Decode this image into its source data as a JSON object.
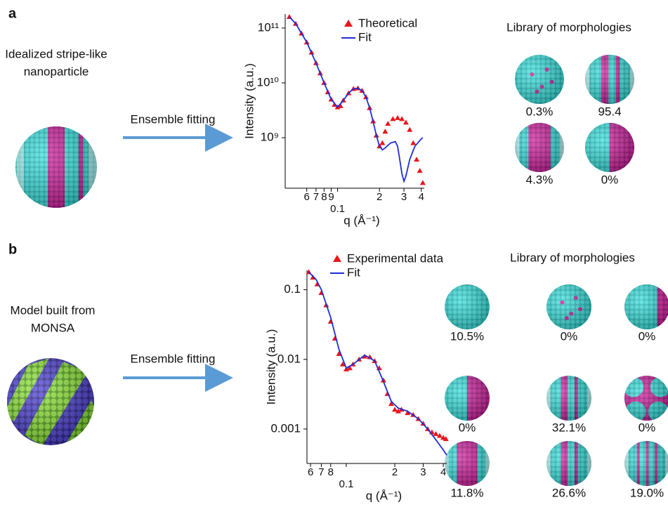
{
  "chart_data": [
    {
      "type": "line",
      "xscale": "log",
      "yscale": "log",
      "ylabel": "Intensity (a.u.)",
      "xlabel": "q (Å⁻¹)",
      "legend": "upper right",
      "xlim": [
        0.042,
        0.42
      ],
      "ylim": [
        120000000,
        180000000000
      ],
      "xticks": [
        {
          "value": 0.06,
          "label": "6"
        },
        {
          "value": 0.07,
          "label": "7"
        },
        {
          "value": 0.08,
          "label": "8"
        },
        {
          "value": 0.09,
          "label": "9"
        },
        0.1,
        {
          "value": 0.2,
          "label": "2"
        },
        {
          "value": 0.3,
          "label": "3"
        },
        {
          "value": 0.4,
          "label": "4"
        }
      ],
      "yticks": [
        {
          "value": 1000000000,
          "label": "10⁹"
        },
        {
          "value": 10000000000,
          "label": "10¹⁰"
        },
        {
          "value": 100000000000,
          "label": "10¹¹"
        }
      ],
      "series": [
        {
          "name": "Theoretical",
          "color": "#e8151b",
          "style": "markers",
          "x": [
            0.045,
            0.05,
            0.055,
            0.06,
            0.065,
            0.07,
            0.075,
            0.08,
            0.085,
            0.09,
            0.095,
            0.1,
            0.105,
            0.11,
            0.12,
            0.13,
            0.14,
            0.15,
            0.16,
            0.17,
            0.18,
            0.19,
            0.2,
            0.21,
            0.22,
            0.23,
            0.25,
            0.27,
            0.29,
            0.31,
            0.33,
            0.35,
            0.37,
            0.39,
            0.41
          ],
          "values": [
            160000000000,
            120000000000,
            80000000000,
            55000000000,
            36000000000,
            23000000000,
            15000000000,
            10000000000,
            6800000000,
            5000000000,
            4000000000,
            3600000000,
            3800000000,
            4800000000,
            6500000000,
            7800000000,
            8000000000,
            7200000000,
            5500000000,
            3500000000,
            2000000000,
            1100000000,
            700000000,
            800000000,
            1300000000,
            1800000000,
            2200000000,
            2300000000,
            2200000000,
            1900000000,
            1400000000,
            800000000,
            400000000,
            250000000,
            150000000
          ]
        },
        {
          "name": "Fit",
          "color": "#1f2fd6",
          "style": "line",
          "x": [
            0.045,
            0.05,
            0.06,
            0.07,
            0.08,
            0.09,
            0.1,
            0.11,
            0.12,
            0.13,
            0.14,
            0.15,
            0.16,
            0.17,
            0.18,
            0.19,
            0.2,
            0.21,
            0.22,
            0.24,
            0.26,
            0.27,
            0.28,
            0.29,
            0.3,
            0.31,
            0.33,
            0.36,
            0.4,
            0.41
          ],
          "values": [
            160000000000,
            120000000000,
            55000000000,
            23000000000,
            10000000000,
            5000000000,
            3600000000,
            4800000000,
            6500000000,
            7800000000,
            8000000000,
            7200000000,
            5500000000,
            3500000000,
            2000000000,
            1100000000,
            700000000,
            600000000,
            650000000,
            800000000,
            850000000,
            700000000,
            400000000,
            220000000,
            160000000,
            200000000,
            400000000,
            700000000,
            950000000,
            1000000000
          ]
        }
      ]
    },
    {
      "type": "line",
      "xscale": "log",
      "yscale": "log",
      "ylabel": "Intensity (a.u.)",
      "xlabel": "q (Å⁻¹)",
      "legend": "upper right",
      "xlim": [
        0.057,
        0.42
      ],
      "ylim": [
        0.00032,
        0.19
      ],
      "xticks": [
        {
          "value": 0.06,
          "label": "6"
        },
        {
          "value": 0.07,
          "label": "7"
        },
        {
          "value": 0.08,
          "label": "8"
        },
        0.1,
        {
          "value": 0.2,
          "label": "2"
        },
        {
          "value": 0.3,
          "label": "3"
        },
        {
          "value": 0.4,
          "label": "4"
        }
      ],
      "yticks": [
        0.001,
        0.01,
        0.1
      ],
      "series": [
        {
          "name": "Experimental data",
          "color": "#e8151b",
          "style": "markers",
          "x": [
            0.0585,
            0.062,
            0.066,
            0.07,
            0.075,
            0.08,
            0.085,
            0.09,
            0.095,
            0.1,
            0.105,
            0.11,
            0.12,
            0.13,
            0.14,
            0.15,
            0.16,
            0.17,
            0.18,
            0.19,
            0.2,
            0.21,
            0.22,
            0.24,
            0.26,
            0.28,
            0.3,
            0.32,
            0.34,
            0.36,
            0.38,
            0.4,
            0.415
          ],
          "values": [
            0.18,
            0.15,
            0.12,
            0.09,
            0.06,
            0.035,
            0.02,
            0.012,
            0.0085,
            0.0072,
            0.0075,
            0.0085,
            0.01,
            0.011,
            0.0108,
            0.0095,
            0.0075,
            0.005,
            0.0032,
            0.0023,
            0.0019,
            0.0018,
            0.0019,
            0.0017,
            0.0016,
            0.0014,
            0.0012,
            0.001,
            0.0009,
            0.00085,
            0.0008,
            0.00075,
            0.00072
          ]
        },
        {
          "name": "Fit",
          "color": "#1f2fd6",
          "style": "line",
          "x": [
            0.0585,
            0.065,
            0.07,
            0.08,
            0.09,
            0.1,
            0.11,
            0.13,
            0.15,
            0.17,
            0.19,
            0.21,
            0.24,
            0.28,
            0.32,
            0.36,
            0.4,
            0.42
          ],
          "values": [
            0.18,
            0.14,
            0.1,
            0.04,
            0.014,
            0.0075,
            0.0085,
            0.0115,
            0.0095,
            0.0048,
            0.0025,
            0.002,
            0.0018,
            0.0014,
            0.001,
            0.0007,
            0.0005,
            0.00042
          ]
        }
      ]
    }
  ],
  "panels": [
    {
      "label": "a",
      "model_caption": [
        "Idealized stripe-like",
        "nanoparticle"
      ],
      "arrow_label": "Ensemble fitting",
      "library_title": "Library of morphologies",
      "library_weights": [
        "0.3%",
        "95.4",
        "4.3%",
        "0%"
      ]
    },
    {
      "label": "b",
      "model_caption": [
        "Model built from",
        "MONSA"
      ],
      "arrow_label": "Ensemble fitting",
      "library_title": "Library of morphologies",
      "library_weights": [
        "10.5%",
        "0%",
        "0%",
        "0%",
        "32.1%",
        "0%",
        "11.8%",
        "26.6%",
        "19.0%"
      ]
    }
  ]
}
